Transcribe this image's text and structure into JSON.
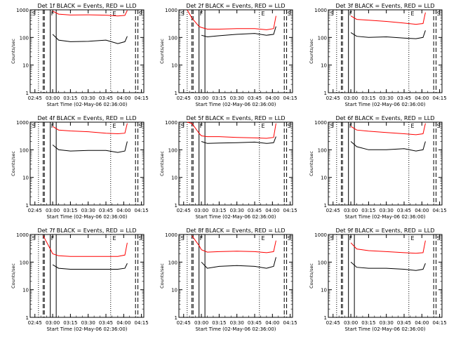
{
  "figure": {
    "xlabel": "Start Time (02-May-06 02:36:00)",
    "ylabel": "Counts/sec"
  },
  "chart_data": [
    {
      "type": "line",
      "title": "Det 1f BLACK = Events, RED = LLD",
      "xlabel": "Start Time (02-May-06 02:36:00)",
      "ylabel": "Counts/sec",
      "yscale": "log",
      "ylim": [
        1,
        1000
      ],
      "x_ticks": [
        "02:45",
        "03:00",
        "03:15",
        "03:30",
        "03:45",
        "04:00",
        "04:15"
      ],
      "y_ticks": [
        "1",
        "10",
        "100",
        "1000"
      ],
      "markers": [
        "S",
        "F",
        "E",
        "S"
      ],
      "series": [
        {
          "color": "#000000",
          "x": [
            "02:48",
            "02:52",
            "02:58",
            "03:00",
            "03:05",
            "03:15",
            "03:30",
            "03:45",
            "03:55",
            "04:01",
            "04:03"
          ],
          "values": [
            null,
            null,
            null,
            130,
            80,
            70,
            72,
            80,
            60,
            70,
            110
          ]
        },
        {
          "color": "#ff0000",
          "x": [
            "02:48",
            "02:52",
            "02:58",
            "03:00",
            "03:05",
            "03:15",
            "03:30",
            "03:45",
            "03:55",
            "04:01",
            "04:03"
          ],
          "values": [
            null,
            null,
            null,
            900,
            700,
            650,
            660,
            640,
            600,
            630,
            950
          ]
        }
      ]
    },
    {
      "type": "line",
      "title": "Det 2f BLACK = Events, RED = LLD",
      "xlabel": "Start Time (02-May-06 02:36:00)",
      "ylabel": "Counts/sec",
      "yscale": "log",
      "ylim": [
        1,
        1000
      ],
      "x_ticks": [
        "02:45",
        "03:00",
        "03:15",
        "03:30",
        "03:45",
        "04:00",
        "04:15"
      ],
      "y_ticks": [
        "1",
        "10",
        "100",
        "1000"
      ],
      "markers": [
        "S",
        "F",
        "E",
        "S"
      ],
      "series": [
        {
          "color": "#000000",
          "x": [
            "02:48",
            "02:52",
            "02:58",
            "03:00",
            "03:05",
            "03:15",
            "03:30",
            "03:45",
            "03:55",
            "04:01",
            "04:03"
          ],
          "values": [
            null,
            null,
            null,
            120,
            105,
            115,
            130,
            140,
            120,
            130,
            250
          ]
        },
        {
          "color": "#ff0000",
          "x": [
            "02:48",
            "02:52",
            "02:58",
            "03:00",
            "03:05",
            "03:15",
            "03:30",
            "03:45",
            "03:55",
            "04:01",
            "04:03"
          ],
          "values": [
            1000,
            500,
            250,
            230,
            200,
            200,
            210,
            210,
            190,
            210,
            600
          ]
        }
      ]
    },
    {
      "type": "line",
      "title": "Det 3f BLACK = Events, RED = LLD",
      "xlabel": "Start Time (02-May-06 02:36:00)",
      "ylabel": "Counts/sec",
      "yscale": "log",
      "ylim": [
        1,
        1000
      ],
      "x_ticks": [
        "02:45",
        "03:00",
        "03:15",
        "03:30",
        "03:45",
        "04:00",
        "04:15"
      ],
      "y_ticks": [
        "1",
        "10",
        "100",
        "1000"
      ],
      "markers": [
        "S",
        "F",
        "E",
        "S"
      ],
      "series": [
        {
          "color": "#000000",
          "x": [
            "02:48",
            "02:52",
            "02:58",
            "03:00",
            "03:05",
            "03:15",
            "03:30",
            "03:45",
            "03:55",
            "04:01",
            "04:03"
          ],
          "values": [
            null,
            null,
            null,
            150,
            110,
            100,
            105,
            95,
            90,
            100,
            180
          ]
        },
        {
          "color": "#ff0000",
          "x": [
            "02:48",
            "02:52",
            "02:58",
            "03:00",
            "03:05",
            "03:15",
            "03:30",
            "03:45",
            "03:55",
            "04:01",
            "04:03"
          ],
          "values": [
            null,
            null,
            null,
            600,
            450,
            420,
            380,
            330,
            300,
            320,
            800
          ]
        }
      ]
    },
    {
      "type": "line",
      "title": "Det 4f BLACK = Events, RED = LLD",
      "xlabel": "Start Time (02-May-06 02:36:00)",
      "ylabel": "Counts/sec",
      "yscale": "log",
      "ylim": [
        1,
        1000
      ],
      "x_ticks": [
        "02:45",
        "03:00",
        "03:15",
        "03:30",
        "03:45",
        "04:00",
        "04:15"
      ],
      "y_ticks": [
        "1",
        "10",
        "100",
        "1000"
      ],
      "markers": [
        "S",
        "F",
        "E",
        "S"
      ],
      "series": [
        {
          "color": "#000000",
          "x": [
            "02:48",
            "02:52",
            "02:58",
            "03:00",
            "03:05",
            "03:15",
            "03:30",
            "03:45",
            "03:55",
            "04:01",
            "04:03"
          ],
          "values": [
            null,
            null,
            null,
            150,
            100,
            90,
            95,
            95,
            80,
            90,
            200
          ]
        },
        {
          "color": "#ff0000",
          "x": [
            "02:48",
            "02:52",
            "02:58",
            "03:00",
            "03:05",
            "03:15",
            "03:30",
            "03:45",
            "03:55",
            "04:01",
            "04:03"
          ],
          "values": [
            null,
            null,
            null,
            700,
            520,
            480,
            450,
            400,
            380,
            400,
            900
          ]
        }
      ]
    },
    {
      "type": "line",
      "title": "Det 5f BLACK = Events, RED = LLD",
      "xlabel": "Start Time (02-May-06 02:36:00)",
      "ylabel": "Counts/sec",
      "yscale": "log",
      "ylim": [
        1,
        1000
      ],
      "x_ticks": [
        "02:45",
        "03:00",
        "03:15",
        "03:30",
        "03:45",
        "04:00",
        "04:15"
      ],
      "y_ticks": [
        "1",
        "10",
        "100",
        "1000"
      ],
      "markers": [
        "S",
        "F",
        "E",
        "S"
      ],
      "series": [
        {
          "color": "#000000",
          "x": [
            "02:48",
            "02:52",
            "02:58",
            "03:00",
            "03:05",
            "03:15",
            "03:30",
            "03:45",
            "03:55",
            "04:01",
            "04:03"
          ],
          "values": [
            null,
            null,
            null,
            200,
            170,
            175,
            180,
            190,
            170,
            180,
            300
          ]
        },
        {
          "color": "#ff0000",
          "x": [
            "02:48",
            "02:52",
            "02:58",
            "03:00",
            "03:05",
            "03:15",
            "03:30",
            "03:45",
            "03:55",
            "04:01",
            "04:03"
          ],
          "values": [
            1000,
            900,
            400,
            320,
            300,
            300,
            280,
            270,
            260,
            280,
            900
          ]
        }
      ]
    },
    {
      "type": "line",
      "title": "Det 6f BLACK = Events, RED = LLD",
      "xlabel": "Start Time (02-May-06 02:36:00)",
      "ylabel": "Counts/sec",
      "yscale": "log",
      "ylim": [
        1,
        1000
      ],
      "x_ticks": [
        "02:45",
        "03:00",
        "03:15",
        "03:30",
        "03:45",
        "04:00",
        "04:15"
      ],
      "y_ticks": [
        "1",
        "10",
        "100",
        "1000"
      ],
      "markers": [
        "S",
        "F",
        "E",
        "S"
      ],
      "series": [
        {
          "color": "#000000",
          "x": [
            "02:48",
            "02:52",
            "02:58",
            "03:00",
            "03:05",
            "03:15",
            "03:30",
            "03:45",
            "03:55",
            "04:01",
            "04:03"
          ],
          "values": [
            null,
            null,
            null,
            200,
            130,
            100,
            100,
            110,
            90,
            100,
            200
          ]
        },
        {
          "color": "#ff0000",
          "x": [
            "02:48",
            "02:52",
            "02:58",
            "03:00",
            "03:05",
            "03:15",
            "03:30",
            "03:45",
            "03:55",
            "04:01",
            "04:03"
          ],
          "values": [
            null,
            null,
            null,
            700,
            520,
            470,
            420,
            380,
            350,
            380,
            900
          ]
        }
      ]
    },
    {
      "type": "line",
      "title": "Det 7f BLACK = Events, RED = LLD",
      "xlabel": "Start Time (02-May-06 02:36:00)",
      "ylabel": "Counts/sec",
      "yscale": "log",
      "ylim": [
        1,
        1000
      ],
      "x_ticks": [
        "02:45",
        "03:00",
        "03:15",
        "03:30",
        "03:45",
        "04:00",
        "04:15"
      ],
      "y_ticks": [
        "1",
        "10",
        "100",
        "1000"
      ],
      "markers": [
        "S",
        "F",
        "E",
        "S"
      ],
      "series": [
        {
          "color": "#000000",
          "x": [
            "02:48",
            "02:52",
            "02:58",
            "03:00",
            "03:05",
            "03:15",
            "03:30",
            "03:45",
            "03:55",
            "04:01",
            "04:03"
          ],
          "values": [
            null,
            null,
            null,
            80,
            60,
            55,
            55,
            55,
            55,
            60,
            90
          ]
        },
        {
          "color": "#ff0000",
          "x": [
            "02:48",
            "02:52",
            "02:58",
            "03:00",
            "03:05",
            "03:15",
            "03:30",
            "03:45",
            "03:55",
            "04:01",
            "04:03"
          ],
          "values": [
            null,
            900,
            300,
            200,
            170,
            160,
            160,
            160,
            160,
            180,
            500
          ]
        }
      ]
    },
    {
      "type": "line",
      "title": "Det 8f BLACK = Events, RED = LLD",
      "xlabel": "Start Time (02-May-06 02:36:00)",
      "ylabel": "Counts/sec",
      "yscale": "log",
      "ylim": [
        1,
        1000
      ],
      "x_ticks": [
        "02:45",
        "03:00",
        "03:15",
        "03:30",
        "03:45",
        "04:00",
        "04:15"
      ],
      "y_ticks": [
        "1",
        "10",
        "100",
        "1000"
      ],
      "markers": [
        "S",
        "F",
        "E",
        "S"
      ],
      "series": [
        {
          "color": "#000000",
          "x": [
            "02:48",
            "02:52",
            "02:58",
            "03:00",
            "03:05",
            "03:15",
            "03:30",
            "03:45",
            "03:55",
            "04:01",
            "04:03"
          ],
          "values": [
            null,
            null,
            null,
            100,
            60,
            70,
            75,
            70,
            60,
            70,
            150
          ]
        },
        {
          "color": "#ff0000",
          "x": [
            "02:48",
            "02:52",
            "02:58",
            "03:00",
            "03:05",
            "03:15",
            "03:30",
            "03:45",
            "03:55",
            "04:01",
            "04:03"
          ],
          "values": [
            null,
            900,
            400,
            280,
            230,
            240,
            250,
            240,
            220,
            240,
            600
          ]
        }
      ]
    },
    {
      "type": "line",
      "title": "Det 9f BLACK = Events, RED = LLD",
      "xlabel": "Start Time (02-May-06 02:36:00)",
      "ylabel": "Counts/sec",
      "yscale": "log",
      "ylim": [
        1,
        1000
      ],
      "x_ticks": [
        "02:45",
        "03:00",
        "03:15",
        "03:30",
        "03:45",
        "04:00",
        "04:15"
      ],
      "y_ticks": [
        "1",
        "10",
        "100",
        "1000"
      ],
      "markers": [
        "S",
        "F",
        "E",
        "S"
      ],
      "series": [
        {
          "color": "#000000",
          "x": [
            "02:48",
            "02:52",
            "02:58",
            "03:00",
            "03:05",
            "03:15",
            "03:30",
            "03:45",
            "03:55",
            "04:01",
            "04:03"
          ],
          "values": [
            null,
            null,
            null,
            100,
            65,
            60,
            60,
            55,
            50,
            55,
            90
          ]
        },
        {
          "color": "#ff0000",
          "x": [
            "02:48",
            "02:52",
            "02:58",
            "03:00",
            "03:05",
            "03:15",
            "03:30",
            "03:45",
            "03:55",
            "04:01",
            "04:03"
          ],
          "values": [
            null,
            null,
            null,
            500,
            300,
            260,
            240,
            220,
            210,
            220,
            600
          ]
        }
      ]
    }
  ]
}
